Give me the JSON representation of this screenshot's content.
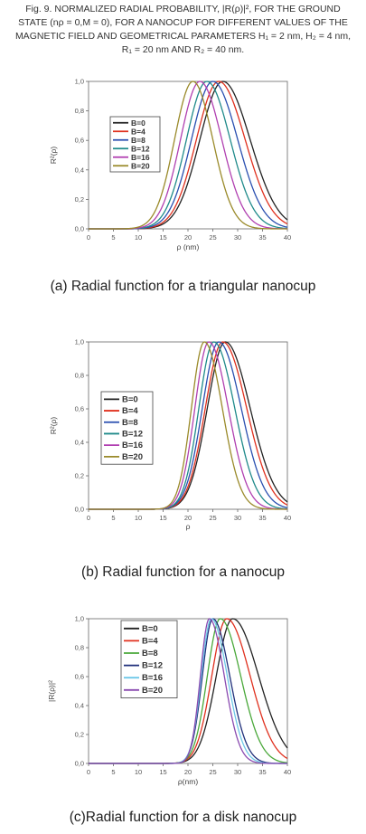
{
  "figure": {
    "caption_lines": [
      "Fig. 9. NORMALIZED RADIAL PROBABILITY, |R(ρ)|², FOR THE GROUND",
      "STATE (nρ = 0,M = 0), FOR A NANOCUP FOR DIFFERENT VALUES OF THE",
      "MAGNETIC FIELD AND GEOMETRICAL PARAMETERS H₁ = 2 nm, H₂ = 4 nm,",
      "R₁ = 20 nm AND R₂ = 40 nm."
    ],
    "subcaptions": [
      "(a) Radial function for a triangular nanocup",
      "(b) Radial function for a nanocup",
      "(c)Radial function for a disk nanocup"
    ]
  },
  "chart_data": [
    {
      "type": "line",
      "xlabel": "ρ (nm)",
      "ylabel": "R²(ρ)",
      "xlim": [
        0,
        40
      ],
      "ylim": [
        0,
        1.0
      ],
      "xticks": [
        "0",
        "5",
        "10",
        "15",
        "20",
        "25",
        "30",
        "35",
        "40"
      ],
      "yticks": [
        "0,0",
        "0,2",
        "0,4",
        "0,6",
        "0,8",
        "1,0"
      ],
      "legend_position": "upper-left",
      "series": [
        {
          "name": "B=0",
          "color": "#222222",
          "peak": 27.0,
          "sigma_left": 4.6,
          "sigma_right": 5.5
        },
        {
          "name": "B=4",
          "color": "#e0301e",
          "peak": 26.2,
          "sigma_left": 4.5,
          "sigma_right": 5.3
        },
        {
          "name": "B=8",
          "color": "#2a4fb0",
          "peak": 25.0,
          "sigma_left": 4.3,
          "sigma_right": 5.0
        },
        {
          "name": "B=12",
          "color": "#1f8a8a",
          "peak": 23.8,
          "sigma_left": 4.1,
          "sigma_right": 4.7
        },
        {
          "name": "B=16",
          "color": "#b03fb0",
          "peak": 22.4,
          "sigma_left": 3.9,
          "sigma_right": 4.4
        },
        {
          "name": "B=20",
          "color": "#9a8a2a",
          "peak": 21.0,
          "sigma_left": 3.7,
          "sigma_right": 4.0
        }
      ]
    },
    {
      "type": "line",
      "xlabel": "ρ",
      "ylabel": "R²(ρ)",
      "xlim": [
        0,
        40
      ],
      "ylim": [
        0,
        1.0
      ],
      "xticks": [
        "0",
        "5",
        "10",
        "15",
        "20",
        "25",
        "30",
        "35",
        "40"
      ],
      "yticks": [
        "0,0",
        "0,2",
        "0,4",
        "0,6",
        "0,8",
        "1,0"
      ],
      "legend_position": "middle-left",
      "series": [
        {
          "name": "B=0",
          "color": "#222222",
          "peak": 27.5,
          "sigma_left": 3.6,
          "sigma_right": 5.0
        },
        {
          "name": "B=4",
          "color": "#e0301e",
          "peak": 27.0,
          "sigma_left": 3.5,
          "sigma_right": 4.8
        },
        {
          "name": "B=8",
          "color": "#2a4fb0",
          "peak": 26.2,
          "sigma_left": 3.3,
          "sigma_right": 4.5
        },
        {
          "name": "B=12",
          "color": "#1f8a8a",
          "peak": 25.2,
          "sigma_left": 3.0,
          "sigma_right": 4.2
        },
        {
          "name": "B=16",
          "color": "#b03fb0",
          "peak": 24.2,
          "sigma_left": 2.8,
          "sigma_right": 3.9
        },
        {
          "name": "B=20",
          "color": "#9a8a2a",
          "peak": 23.3,
          "sigma_left": 2.6,
          "sigma_right": 3.6
        }
      ]
    },
    {
      "type": "line",
      "xlabel": "ρ(nm)",
      "ylabel": "|R(ρ)|²",
      "xlim": [
        0,
        40
      ],
      "ylim": [
        0,
        1.0
      ],
      "xticks": [
        "0",
        "5",
        "10",
        "15",
        "20",
        "25",
        "30",
        "35",
        "40"
      ],
      "yticks": [
        "0,0",
        "0,2",
        "0,4",
        "0,6",
        "0,8",
        "1,0"
      ],
      "legend_position": "upper-left",
      "series": [
        {
          "name": "B=0",
          "color": "#222222",
          "peak": 29.0,
          "sigma_left": 3.3,
          "sigma_right": 5.2
        },
        {
          "name": "B=4",
          "color": "#e0301e",
          "peak": 27.8,
          "sigma_left": 3.0,
          "sigma_right": 4.7
        },
        {
          "name": "B=8",
          "color": "#4aa83a",
          "peak": 26.5,
          "sigma_left": 2.6,
          "sigma_right": 4.1
        },
        {
          "name": "B=12",
          "color": "#1f2f7a",
          "peak": 25.0,
          "sigma_left": 2.1,
          "sigma_right": 3.4
        },
        {
          "name": "B=16",
          "color": "#6ec8e8",
          "peak": 24.7,
          "sigma_left": 2.0,
          "sigma_right": 3.2
        },
        {
          "name": "B=20",
          "color": "#8a4ab0",
          "peak": 24.3,
          "sigma_left": 1.8,
          "sigma_right": 3.0
        }
      ]
    }
  ]
}
